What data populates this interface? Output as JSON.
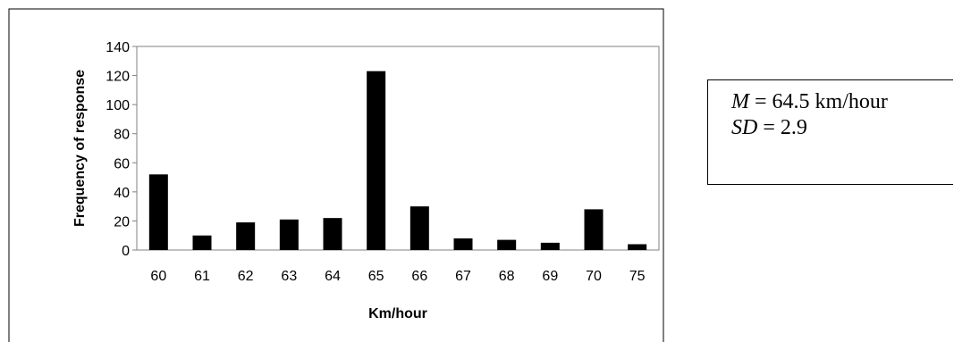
{
  "chart_data": {
    "type": "bar",
    "categories": [
      "60",
      "61",
      "62",
      "63",
      "64",
      "65",
      "66",
      "67",
      "68",
      "69",
      "70",
      "75"
    ],
    "values": [
      52,
      10,
      19,
      21,
      22,
      123,
      30,
      8,
      7,
      5,
      28,
      4
    ],
    "xlabel": "Km/hour",
    "ylabel": "Frequency of response",
    "ylim": [
      0,
      140
    ],
    "yticks": [
      0,
      20,
      40,
      60,
      80,
      100,
      120,
      140
    ],
    "grid": false,
    "legend": "none",
    "bar_color": "#000000"
  },
  "stats": {
    "mean_label": "M",
    "mean_value": "= 64.5 km/hour",
    "sd_label": "SD",
    "sd_value": "=  2.9"
  }
}
